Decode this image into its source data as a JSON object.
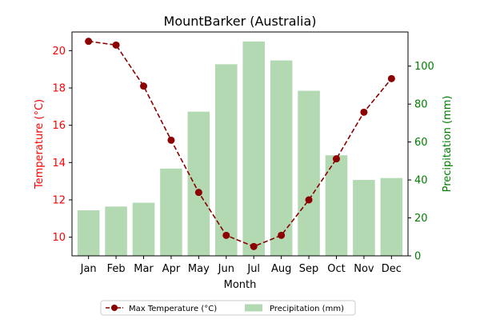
{
  "chart_data": {
    "type": "bar+line",
    "title": "MountBarker (Australia)",
    "xlabel": "Month",
    "categories": [
      "Jan",
      "Feb",
      "Mar",
      "Apr",
      "May",
      "Jun",
      "Jul",
      "Aug",
      "Sep",
      "Oct",
      "Nov",
      "Dec"
    ],
    "left_axis": {
      "label": "Temperature (°C)",
      "ylim": [
        9,
        21
      ],
      "ticks": [
        10,
        12,
        14,
        16,
        18,
        20
      ],
      "color": "#ff0000"
    },
    "right_axis": {
      "label": "Precipitation (mm)",
      "ylim": [
        0,
        118
      ],
      "ticks": [
        0,
        20,
        40,
        60,
        80,
        100
      ],
      "color": "#008000"
    },
    "series": [
      {
        "name": "Max Temperature (°C)",
        "kind": "line",
        "axis": "left",
        "color": "#8b0000",
        "marker": "circle",
        "dash": "dashed",
        "values": [
          20.5,
          20.3,
          18.1,
          15.2,
          12.4,
          10.1,
          9.5,
          10.1,
          12.0,
          14.2,
          16.7,
          18.5
        ]
      },
      {
        "name": "Precipitation (mm)",
        "kind": "bar",
        "axis": "right",
        "color": "#b2d9b2",
        "values": [
          24,
          26,
          28,
          46,
          76,
          101,
          113,
          103,
          87,
          53,
          40,
          41
        ]
      }
    ],
    "legend": {
      "placement": "bottom-center",
      "columns": 2
    },
    "grid": false
  }
}
